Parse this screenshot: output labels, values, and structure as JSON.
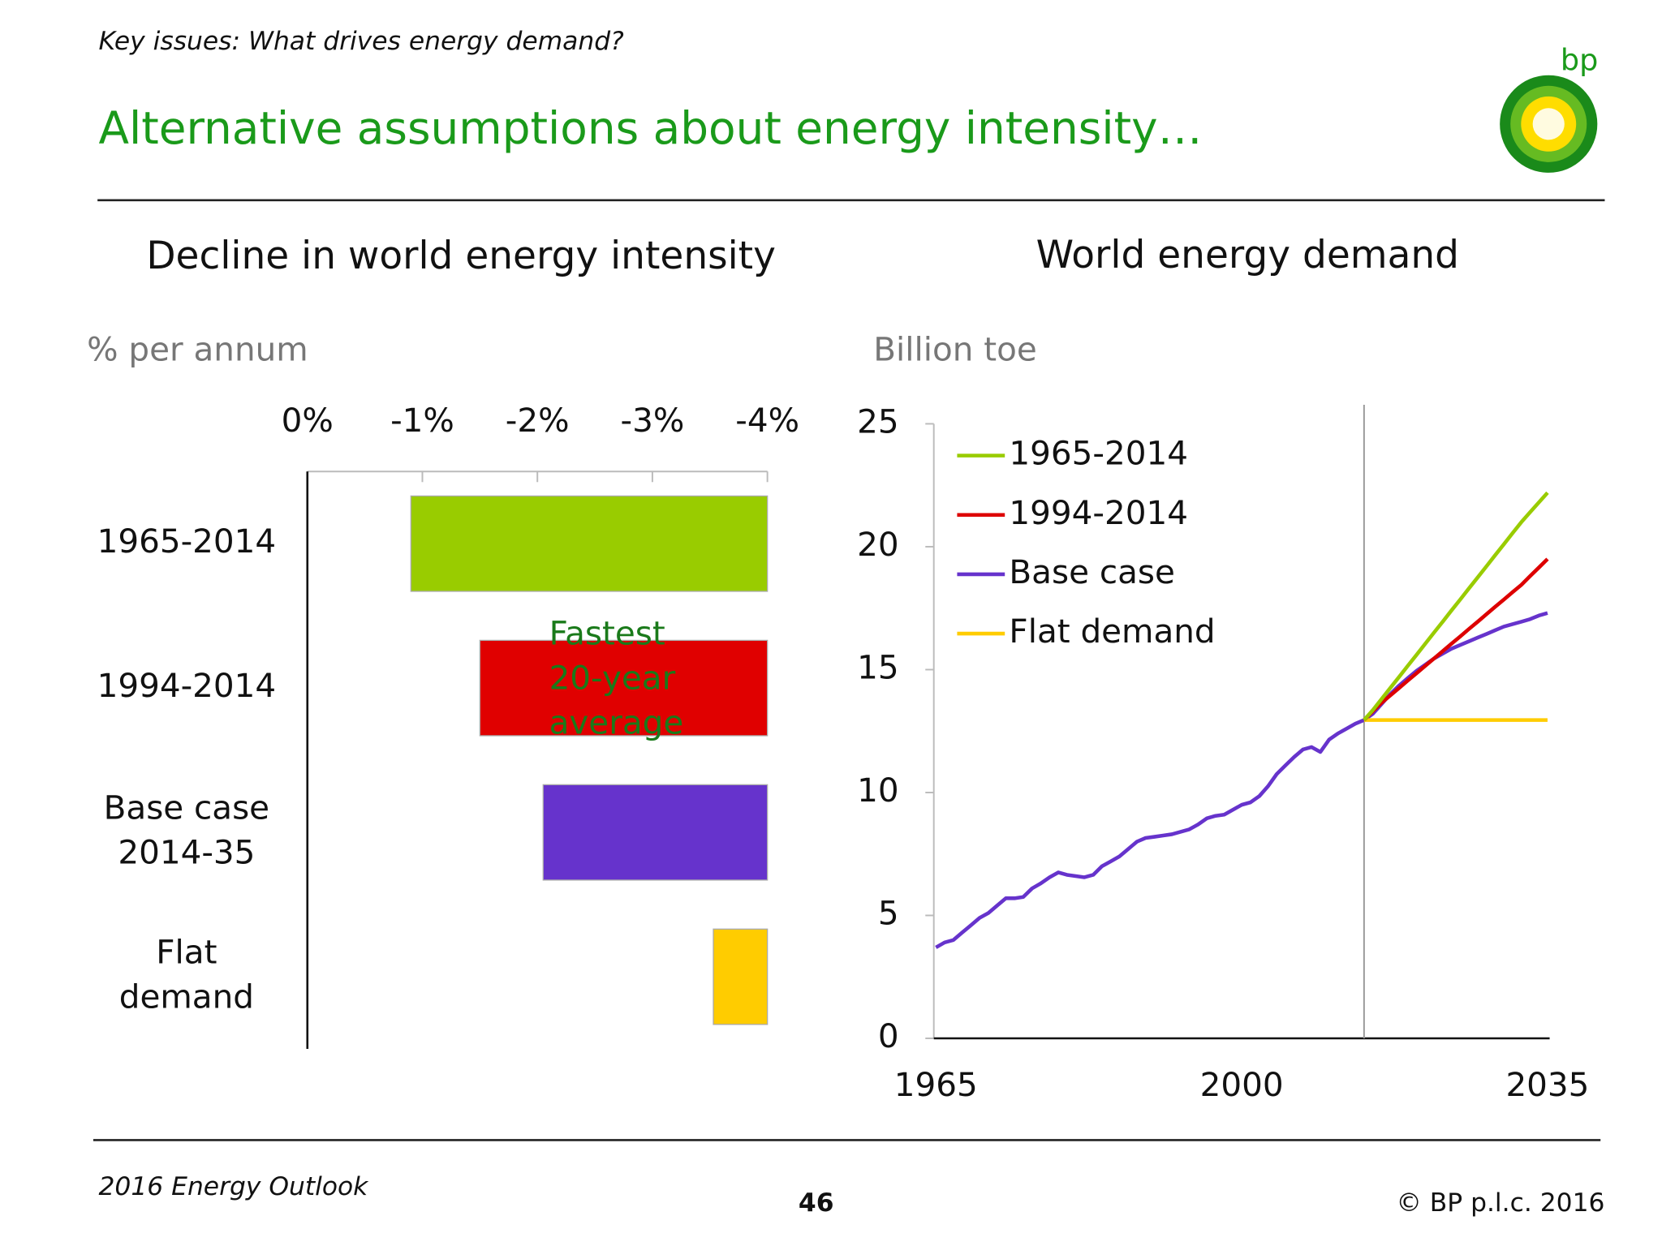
{
  "header": {
    "section": "Key issues: What drives energy demand?",
    "title": "Alternative assumptions about energy intensity…",
    "logo": "bp"
  },
  "footer": {
    "left": "2016 Energy Outlook",
    "page": "46",
    "right": "© BP p.l.c. 2016"
  },
  "chart_data": [
    {
      "type": "bar",
      "orientation": "horizontal",
      "title": "Decline in world energy intensity",
      "y_label": "% per annum",
      "categories": [
        "1965-2014",
        "1994-2014",
        "Base case\n2014-35",
        "Flat\ndemand"
      ],
      "values": [
        -0.9,
        -1.5,
        -2.05,
        -3.53
      ],
      "colors": [
        "#99cc00",
        "#e00000",
        "#6633cc",
        "#ffcc00"
      ],
      "xlim": [
        0,
        -4
      ],
      "xticks": [
        {
          "value": 0,
          "label": "0%"
        },
        {
          "value": -1,
          "label": "-1%"
        },
        {
          "value": -2,
          "label": "-2%"
        },
        {
          "value": -3,
          "label": "-3%"
        },
        {
          "value": -4,
          "label": "-4%"
        }
      ],
      "annotation": "Fastest\n20-year\naverage"
    },
    {
      "type": "line",
      "title": "World energy demand",
      "y_label": "Billion toe",
      "x": [
        1965,
        1966,
        1967,
        1968,
        1969,
        1970,
        1971,
        1972,
        1973,
        1974,
        1975,
        1976,
        1977,
        1978,
        1979,
        1980,
        1981,
        1982,
        1983,
        1984,
        1985,
        1986,
        1987,
        1988,
        1989,
        1990,
        1991,
        1992,
        1993,
        1994,
        1995,
        1996,
        1997,
        1998,
        1999,
        2000,
        2001,
        2002,
        2003,
        2004,
        2005,
        2006,
        2007,
        2008,
        2009,
        2010,
        2011,
        2012,
        2013,
        2014,
        2015,
        2016,
        2017,
        2018,
        2019,
        2020,
        2021,
        2022,
        2023,
        2024,
        2025,
        2026,
        2027,
        2028,
        2029,
        2030,
        2031,
        2032,
        2033,
        2034,
        2035
      ],
      "series": [
        {
          "name": "1965-2014",
          "color": "#99cc00",
          "values": [
            null,
            null,
            null,
            null,
            null,
            null,
            null,
            null,
            null,
            null,
            null,
            null,
            null,
            null,
            null,
            null,
            null,
            null,
            null,
            null,
            null,
            null,
            null,
            null,
            null,
            null,
            null,
            null,
            null,
            null,
            null,
            null,
            null,
            null,
            null,
            null,
            null,
            null,
            null,
            null,
            null,
            null,
            null,
            null,
            null,
            null,
            null,
            null,
            null,
            12.95,
            13.35,
            13.8,
            14.25,
            14.7,
            15.15,
            15.6,
            16.05,
            16.5,
            16.95,
            17.4,
            17.85,
            18.3,
            18.75,
            19.2,
            19.65,
            20.1,
            20.55,
            21.0,
            21.4,
            21.8,
            22.2
          ]
        },
        {
          "name": "1994-2014",
          "color": "#dd0000",
          "values": [
            null,
            null,
            null,
            null,
            null,
            null,
            null,
            null,
            null,
            null,
            null,
            null,
            null,
            null,
            null,
            null,
            null,
            null,
            null,
            null,
            null,
            null,
            null,
            null,
            null,
            null,
            null,
            null,
            null,
            null,
            null,
            null,
            null,
            null,
            null,
            null,
            null,
            null,
            null,
            null,
            null,
            null,
            null,
            null,
            null,
            null,
            null,
            null,
            null,
            12.95,
            13.3,
            13.65,
            13.95,
            14.25,
            14.55,
            14.85,
            15.15,
            15.45,
            15.75,
            16.05,
            16.35,
            16.65,
            16.95,
            17.25,
            17.55,
            17.85,
            18.15,
            18.45,
            18.8,
            19.15,
            19.5
          ]
        },
        {
          "name": "Base case",
          "color": "#6633cc",
          "values": [
            3.7,
            3.9,
            4.0,
            4.3,
            4.6,
            4.9,
            5.1,
            5.4,
            5.7,
            5.7,
            5.75,
            6.1,
            6.3,
            6.55,
            6.75,
            6.65,
            6.6,
            6.55,
            6.65,
            7.0,
            7.2,
            7.4,
            7.7,
            8.0,
            8.15,
            8.2,
            8.25,
            8.3,
            8.4,
            8.5,
            8.7,
            8.95,
            9.05,
            9.1,
            9.3,
            9.5,
            9.6,
            9.85,
            10.25,
            10.75,
            11.1,
            11.45,
            11.75,
            11.85,
            11.65,
            12.15,
            12.4,
            12.6,
            12.8,
            12.95,
            13.2,
            13.6,
            14.0,
            14.35,
            14.65,
            14.95,
            15.2,
            15.45,
            15.65,
            15.85,
            16.0,
            16.15,
            16.3,
            16.45,
            16.6,
            16.75,
            16.85,
            16.95,
            17.05,
            17.2,
            17.3
          ]
        },
        {
          "name": "Flat demand",
          "color": "#ffcc00",
          "values": [
            null,
            null,
            null,
            null,
            null,
            null,
            null,
            null,
            null,
            null,
            null,
            null,
            null,
            null,
            null,
            null,
            null,
            null,
            null,
            null,
            null,
            null,
            null,
            null,
            null,
            null,
            null,
            null,
            null,
            null,
            null,
            null,
            null,
            null,
            null,
            null,
            null,
            null,
            null,
            null,
            null,
            null,
            null,
            null,
            null,
            null,
            null,
            null,
            null,
            12.95,
            12.95,
            12.95,
            12.95,
            12.95,
            12.95,
            12.95,
            12.95,
            12.95,
            12.95,
            12.95,
            12.95,
            12.95,
            12.95,
            12.95,
            12.95,
            12.95,
            12.95,
            12.95,
            12.95,
            12.95,
            12.95
          ]
        }
      ],
      "xlim": [
        1965,
        2035
      ],
      "xticks": [
        1965,
        2000,
        2035
      ],
      "ylim": [
        0,
        25
      ],
      "yticks": [
        0,
        5,
        10,
        15,
        20,
        25
      ],
      "vline": 2014,
      "legend": "top-left"
    }
  ]
}
